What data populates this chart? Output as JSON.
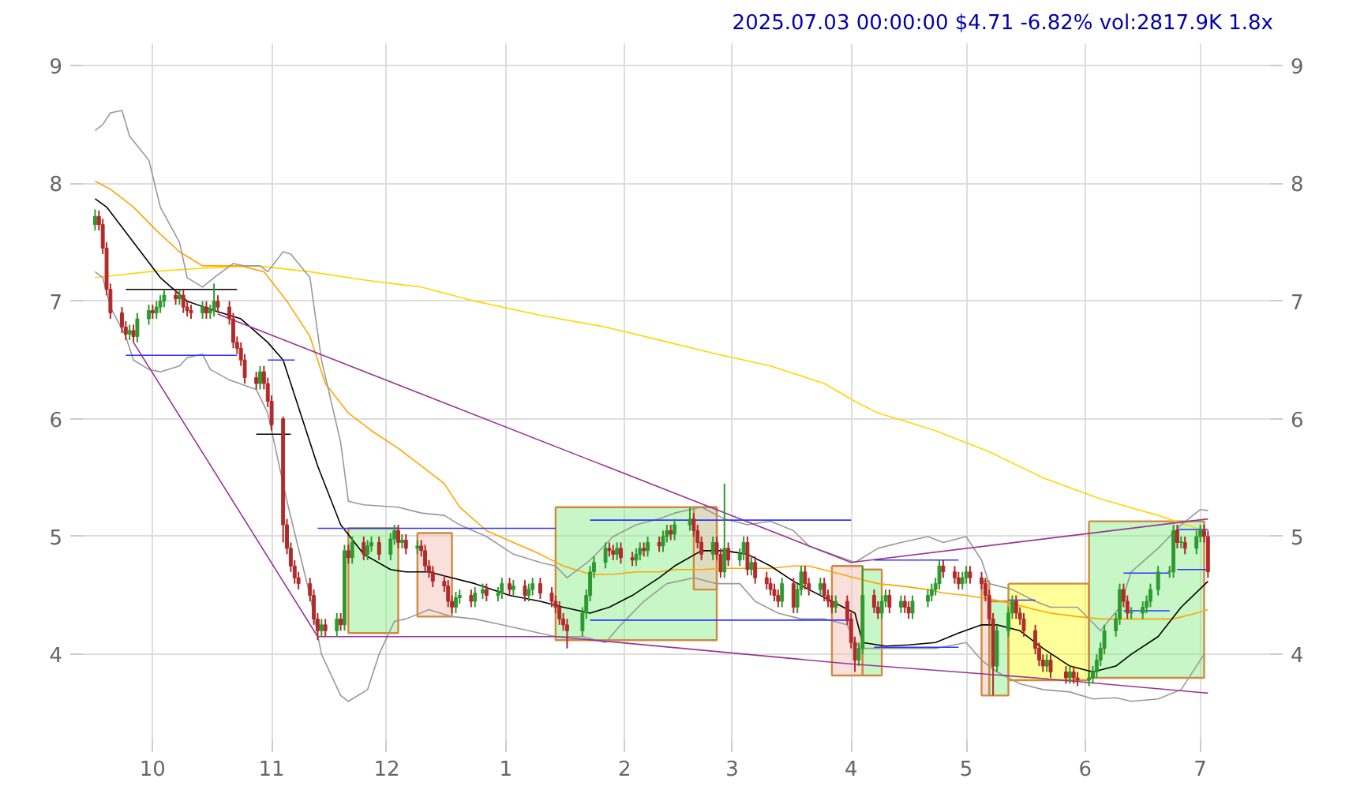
{
  "chart_data": {
    "type": "candlestick",
    "title": "2025.07.03 00:00:00 $4.71 -6.82% vol:2817.9K 1.8x",
    "x": [
      "2024-09-16",
      "2024-09-17",
      "2024-09-18",
      "2024-09-19",
      "2024-09-20",
      "2024-09-23",
      "2024-09-24",
      "2024-09-25",
      "2024-09-26",
      "2024-09-27",
      "2024-09-30",
      "2024-10-01",
      "2024-10-02",
      "2024-10-03",
      "2024-10-04",
      "2024-10-07",
      "2024-10-08",
      "2024-10-09",
      "2024-10-10",
      "2024-10-11",
      "2024-10-14",
      "2024-10-15",
      "2024-10-16",
      "2024-10-17",
      "2024-10-18",
      "2024-10-21",
      "2024-10-22",
      "2024-10-23",
      "2024-10-24",
      "2024-10-25",
      "2024-10-28",
      "2024-10-29",
      "2024-10-30",
      "2024-10-31",
      "2024-11-01",
      "2024-11-04",
      "2024-11-05",
      "2024-11-06",
      "2024-11-07",
      "2024-11-08",
      "2024-11-11",
      "2024-11-12",
      "2024-11-13",
      "2024-11-14",
      "2024-11-15",
      "2024-11-18",
      "2024-11-19",
      "2024-11-20",
      "2024-11-21",
      "2024-11-22",
      "2024-11-25",
      "2024-11-26",
      "2024-11-27",
      "2024-11-29",
      "2024-12-02",
      "2024-12-03",
      "2024-12-04",
      "2024-12-05",
      "2024-12-06",
      "2024-12-09",
      "2024-12-10",
      "2024-12-11",
      "2024-12-12",
      "2024-12-13",
      "2024-12-16",
      "2024-12-17",
      "2024-12-18",
      "2024-12-19",
      "2024-12-20",
      "2024-12-23",
      "2024-12-24",
      "2024-12-26",
      "2024-12-27",
      "2024-12-30",
      "2024-12-31",
      "2025-01-02",
      "2025-01-03",
      "2025-01-06",
      "2025-01-07",
      "2025-01-08",
      "2025-01-10",
      "2025-01-13",
      "2025-01-14",
      "2025-01-15",
      "2025-01-16",
      "2025-01-17",
      "2025-01-21",
      "2025-01-22",
      "2025-01-23",
      "2025-01-24",
      "2025-01-27",
      "2025-01-28",
      "2025-01-29",
      "2025-01-30",
      "2025-01-31",
      "2025-02-03",
      "2025-02-04",
      "2025-02-05",
      "2025-02-06",
      "2025-02-07",
      "2025-02-10",
      "2025-02-11",
      "2025-02-12",
      "2025-02-13",
      "2025-02-14",
      "2025-02-18",
      "2025-02-19",
      "2025-02-20",
      "2025-02-21",
      "2025-02-24",
      "2025-02-25",
      "2025-02-26",
      "2025-02-27",
      "2025-02-28",
      "2025-03-03",
      "2025-03-04",
      "2025-03-05",
      "2025-03-06",
      "2025-03-07",
      "2025-03-10",
      "2025-03-11",
      "2025-03-12",
      "2025-03-13",
      "2025-03-14",
      "2025-03-17",
      "2025-03-18",
      "2025-03-19",
      "2025-03-20",
      "2025-03-21",
      "2025-03-24",
      "2025-03-25",
      "2025-03-26",
      "2025-03-27",
      "2025-03-28",
      "2025-03-31",
      "2025-04-01",
      "2025-04-02",
      "2025-04-03",
      "2025-04-04",
      "2025-04-07",
      "2025-04-08",
      "2025-04-09",
      "2025-04-10",
      "2025-04-11",
      "2025-04-14",
      "2025-04-15",
      "2025-04-16",
      "2025-04-17",
      "2025-04-21",
      "2025-04-22",
      "2025-04-23",
      "2025-04-24",
      "2025-04-25",
      "2025-04-28",
      "2025-04-29",
      "2025-04-30",
      "2025-05-01",
      "2025-05-02",
      "2025-05-05",
      "2025-05-06",
      "2025-05-07",
      "2025-05-08",
      "2025-05-09",
      "2025-05-12",
      "2025-05-13",
      "2025-05-14",
      "2025-05-15",
      "2025-05-16",
      "2025-05-19",
      "2025-05-20",
      "2025-05-21",
      "2025-05-22",
      "2025-05-23",
      "2025-05-27",
      "2025-05-28",
      "2025-05-29",
      "2025-05-30",
      "2025-06-02",
      "2025-06-03",
      "2025-06-04",
      "2025-06-05",
      "2025-06-06",
      "2025-06-09",
      "2025-06-10",
      "2025-06-11",
      "2025-06-12",
      "2025-06-13",
      "2025-06-16",
      "2025-06-17",
      "2025-06-18",
      "2025-06-20",
      "2025-06-23",
      "2025-06-24",
      "2025-06-25",
      "2025-06-26",
      "2025-06-27",
      "2025-06-30",
      "2025-07-01",
      "2025-07-02",
      "2025-07-03"
    ],
    "ohlc": [
      [
        7.65,
        7.78,
        7.6,
        7.72
      ],
      [
        7.72,
        7.77,
        7.6,
        7.65
      ],
      [
        7.65,
        7.7,
        7.4,
        7.45
      ],
      [
        7.45,
        7.5,
        7.05,
        7.1
      ],
      [
        7.1,
        7.15,
        6.85,
        6.9
      ],
      [
        6.9,
        6.95,
        6.73,
        6.78
      ],
      [
        6.78,
        6.83,
        6.67,
        6.72
      ],
      [
        6.72,
        6.8,
        6.67,
        6.75
      ],
      [
        6.75,
        6.8,
        6.65,
        6.7
      ],
      [
        6.7,
        6.9,
        6.65,
        6.85
      ],
      [
        6.85,
        6.97,
        6.8,
        6.92
      ],
      [
        6.92,
        6.97,
        6.85,
        6.9
      ],
      [
        6.9,
        7.0,
        6.85,
        6.95
      ],
      [
        6.95,
        7.05,
        6.9,
        7.0
      ],
      [
        7.0,
        7.1,
        6.95,
        7.05
      ],
      [
        7.05,
        7.1,
        6.97,
        7.02
      ],
      [
        7.02,
        7.1,
        6.97,
        7.05
      ],
      [
        7.05,
        7.1,
        6.9,
        6.95
      ],
      [
        6.95,
        7.0,
        6.87,
        6.92
      ],
      [
        6.92,
        6.97,
        6.85,
        6.9
      ],
      [
        6.9,
        7.0,
        6.85,
        6.95
      ],
      [
        6.95,
        7.0,
        6.85,
        6.9
      ],
      [
        6.9,
        6.97,
        6.85,
        6.92
      ],
      [
        6.92,
        7.15,
        6.87,
        7.0
      ],
      [
        7.0,
        7.05,
        6.9,
        6.95
      ],
      [
        6.95,
        7.0,
        6.8,
        6.85
      ],
      [
        6.85,
        6.9,
        6.6,
        6.65
      ],
      [
        6.65,
        6.7,
        6.55,
        6.6
      ],
      [
        6.6,
        6.65,
        6.45,
        6.5
      ],
      [
        6.5,
        6.55,
        6.3,
        6.35
      ],
      [
        6.35,
        6.4,
        6.25,
        6.3
      ],
      [
        6.3,
        6.45,
        6.25,
        6.4
      ],
      [
        6.4,
        6.45,
        6.25,
        6.3
      ],
      [
        6.3,
        6.35,
        6.1,
        6.15
      ],
      [
        6.15,
        6.2,
        5.9,
        5.95
      ],
      [
        6.0,
        6.02,
        4.95,
        5.1
      ],
      [
        5.1,
        5.15,
        4.85,
        4.9
      ],
      [
        4.9,
        4.95,
        4.7,
        4.75
      ],
      [
        4.75,
        4.8,
        4.6,
        4.65
      ],
      [
        4.65,
        4.7,
        4.55,
        4.6
      ],
      [
        4.6,
        4.65,
        4.45,
        4.5
      ],
      [
        4.5,
        4.55,
        4.25,
        4.3
      ],
      [
        4.3,
        4.35,
        4.12,
        4.2
      ],
      [
        4.2,
        4.3,
        4.15,
        4.25
      ],
      [
        4.25,
        4.3,
        4.15,
        4.2
      ],
      [
        4.2,
        4.35,
        4.15,
        4.3
      ],
      [
        4.3,
        4.35,
        4.2,
        4.25
      ],
      [
        4.25,
        4.93,
        4.2,
        4.88
      ],
      [
        4.88,
        4.93,
        4.77,
        4.82
      ],
      [
        4.82,
        5.0,
        4.77,
        4.95
      ],
      [
        4.95,
        5.0,
        4.8,
        4.85
      ],
      [
        4.85,
        4.97,
        4.8,
        4.92
      ],
      [
        4.92,
        5.0,
        4.87,
        4.95
      ],
      [
        4.95,
        5.0,
        4.8,
        4.85
      ],
      [
        4.85,
        5.03,
        4.8,
        4.98
      ],
      [
        4.98,
        5.1,
        4.93,
        5.05
      ],
      [
        5.05,
        5.1,
        4.9,
        4.95
      ],
      [
        4.95,
        5.02,
        4.9,
        4.97
      ],
      [
        4.97,
        5.02,
        4.85,
        4.9
      ],
      [
        4.9,
        4.97,
        4.85,
        4.92
      ],
      [
        4.92,
        4.97,
        4.83,
        4.88
      ],
      [
        4.88,
        4.93,
        4.7,
        4.75
      ],
      [
        4.75,
        4.8,
        4.65,
        4.7
      ],
      [
        4.7,
        4.75,
        4.57,
        4.62
      ],
      [
        4.62,
        4.67,
        4.53,
        4.58
      ],
      [
        4.58,
        4.63,
        4.4,
        4.45
      ],
      [
        4.45,
        4.5,
        4.35,
        4.4
      ],
      [
        4.4,
        4.53,
        4.35,
        4.48
      ],
      [
        4.48,
        4.55,
        4.43,
        4.5
      ],
      [
        4.5,
        4.55,
        4.4,
        4.45
      ],
      [
        4.45,
        4.57,
        4.4,
        4.52
      ],
      [
        4.52,
        4.6,
        4.47,
        4.55
      ],
      [
        4.55,
        4.6,
        4.45,
        4.5
      ],
      [
        4.5,
        4.57,
        4.45,
        4.52
      ],
      [
        4.52,
        4.65,
        4.47,
        4.6
      ],
      [
        4.6,
        4.65,
        4.5,
        4.55
      ],
      [
        4.55,
        4.63,
        4.5,
        4.58
      ],
      [
        4.58,
        4.63,
        4.45,
        4.5
      ],
      [
        4.5,
        4.6,
        4.45,
        4.55
      ],
      [
        4.55,
        4.65,
        4.5,
        4.6
      ],
      [
        4.6,
        4.65,
        4.47,
        4.52
      ],
      [
        4.52,
        4.57,
        4.4,
        4.45
      ],
      [
        4.45,
        4.5,
        4.35,
        4.4
      ],
      [
        4.4,
        4.45,
        4.25,
        4.3
      ],
      [
        4.3,
        4.35,
        4.2,
        4.25
      ],
      [
        4.25,
        4.3,
        4.05,
        4.2
      ],
      [
        4.2,
        4.4,
        4.15,
        4.35
      ],
      [
        4.35,
        4.55,
        4.3,
        4.5
      ],
      [
        4.5,
        4.75,
        4.45,
        4.7
      ],
      [
        4.7,
        4.83,
        4.65,
        4.78
      ],
      [
        4.78,
        4.95,
        4.73,
        4.9
      ],
      [
        4.9,
        4.95,
        4.83,
        4.88
      ],
      [
        4.88,
        4.93,
        4.8,
        4.85
      ],
      [
        4.85,
        4.95,
        4.8,
        4.9
      ],
      [
        4.9,
        4.95,
        4.77,
        4.82
      ],
      [
        4.82,
        4.87,
        4.75,
        4.8
      ],
      [
        4.8,
        4.9,
        4.75,
        4.85
      ],
      [
        4.85,
        4.95,
        4.8,
        4.9
      ],
      [
        4.9,
        4.95,
        4.83,
        4.88
      ],
      [
        4.88,
        5.0,
        4.83,
        4.95
      ],
      [
        4.95,
        5.0,
        4.87,
        4.92
      ],
      [
        4.92,
        5.05,
        4.87,
        5.0
      ],
      [
        5.0,
        5.1,
        4.95,
        5.05
      ],
      [
        5.05,
        5.1,
        4.97,
        5.02
      ],
      [
        5.02,
        5.15,
        4.97,
        5.1
      ],
      [
        5.1,
        5.25,
        5.05,
        5.15
      ],
      [
        5.15,
        5.2,
        5.0,
        5.05
      ],
      [
        5.05,
        5.1,
        4.9,
        4.95
      ],
      [
        4.95,
        5.0,
        4.8,
        4.85
      ],
      [
        4.85,
        5.0,
        4.8,
        4.95
      ],
      [
        4.95,
        5.0,
        4.8,
        4.85
      ],
      [
        4.85,
        4.9,
        4.65,
        4.7
      ],
      [
        4.7,
        5.45,
        4.65,
        4.9
      ],
      [
        4.9,
        4.95,
        4.75,
        4.8
      ],
      [
        4.8,
        4.9,
        4.75,
        4.85
      ],
      [
        4.85,
        5.0,
        4.8,
        4.95
      ],
      [
        4.95,
        5.0,
        4.67,
        4.72
      ],
      [
        4.72,
        4.83,
        4.67,
        4.78
      ],
      [
        4.78,
        4.83,
        4.6,
        4.65
      ],
      [
        4.65,
        4.7,
        4.55,
        4.6
      ],
      [
        4.6,
        4.65,
        4.5,
        4.55
      ],
      [
        4.55,
        4.6,
        4.45,
        4.5
      ],
      [
        4.5,
        4.55,
        4.4,
        4.45
      ],
      [
        4.45,
        4.65,
        4.4,
        4.6
      ],
      [
        4.6,
        4.65,
        4.35,
        4.4
      ],
      [
        4.4,
        4.6,
        4.35,
        4.55
      ],
      [
        4.55,
        4.75,
        4.5,
        4.7
      ],
      [
        4.7,
        4.75,
        4.55,
        4.6
      ],
      [
        4.6,
        4.65,
        4.5,
        4.55
      ],
      [
        4.55,
        4.65,
        4.5,
        4.6
      ],
      [
        4.6,
        4.65,
        4.45,
        4.5
      ],
      [
        4.5,
        4.55,
        4.4,
        4.45
      ],
      [
        4.45,
        4.5,
        4.35,
        4.4
      ],
      [
        4.4,
        4.5,
        4.35,
        4.45
      ],
      [
        4.45,
        4.5,
        4.25,
        4.3
      ],
      [
        4.3,
        4.35,
        4.05,
        4.1
      ],
      [
        4.1,
        4.15,
        3.85,
        3.95
      ],
      [
        3.95,
        4.1,
        3.9,
        4.05
      ],
      [
        4.05,
        4.75,
        4.0,
        4.5
      ],
      [
        4.5,
        4.55,
        4.35,
        4.4
      ],
      [
        4.4,
        4.45,
        4.3,
        4.35
      ],
      [
        4.35,
        4.5,
        4.3,
        4.45
      ],
      [
        4.45,
        4.55,
        4.4,
        4.5
      ],
      [
        4.5,
        4.55,
        4.35,
        4.4
      ],
      [
        4.4,
        4.5,
        4.35,
        4.45
      ],
      [
        4.45,
        4.5,
        4.35,
        4.4
      ],
      [
        4.4,
        4.45,
        4.3,
        4.35
      ],
      [
        4.35,
        4.5,
        4.3,
        4.45
      ],
      [
        4.45,
        4.55,
        4.4,
        4.5
      ],
      [
        4.5,
        4.6,
        4.45,
        4.55
      ],
      [
        4.55,
        4.65,
        4.5,
        4.6
      ],
      [
        4.6,
        4.8,
        4.55,
        4.75
      ],
      [
        4.75,
        4.8,
        4.65,
        4.7
      ],
      [
        4.7,
        4.75,
        4.6,
        4.65
      ],
      [
        4.65,
        4.7,
        4.55,
        4.6
      ],
      [
        4.6,
        4.7,
        4.55,
        4.65
      ],
      [
        4.65,
        4.75,
        4.6,
        4.7
      ],
      [
        4.7,
        4.75,
        4.6,
        4.65
      ],
      [
        4.65,
        4.7,
        4.55,
        4.6
      ],
      [
        4.6,
        4.65,
        4.45,
        4.5
      ],
      [
        4.5,
        4.55,
        4.25,
        4.3
      ],
      [
        4.3,
        4.35,
        3.65,
        3.9
      ],
      [
        3.9,
        4.25,
        3.85,
        4.2
      ],
      [
        4.2,
        4.4,
        4.15,
        4.35
      ],
      [
        4.35,
        4.5,
        4.3,
        4.45
      ],
      [
        4.45,
        4.5,
        4.3,
        4.35
      ],
      [
        4.35,
        4.4,
        4.25,
        4.3
      ],
      [
        4.3,
        4.35,
        4.15,
        4.2
      ],
      [
        4.2,
        4.25,
        4.0,
        4.05
      ],
      [
        4.05,
        4.1,
        3.9,
        3.95
      ],
      [
        3.95,
        4.0,
        3.85,
        3.9
      ],
      [
        3.9,
        4.0,
        3.85,
        3.95
      ],
      [
        3.95,
        4.0,
        3.8,
        3.85
      ],
      [
        3.85,
        3.9,
        3.75,
        3.8
      ],
      [
        3.8,
        3.9,
        3.75,
        3.85
      ],
      [
        3.85,
        3.9,
        3.75,
        3.8
      ],
      [
        3.8,
        3.85,
        3.73,
        3.78
      ],
      [
        3.78,
        3.85,
        3.73,
        3.8
      ],
      [
        3.8,
        3.9,
        3.75,
        3.85
      ],
      [
        3.85,
        4.0,
        3.8,
        3.95
      ],
      [
        3.95,
        4.1,
        3.9,
        4.05
      ],
      [
        4.05,
        4.25,
        4.0,
        4.2
      ],
      [
        4.2,
        4.35,
        4.15,
        4.3
      ],
      [
        4.3,
        4.6,
        4.25,
        4.55
      ],
      [
        4.55,
        4.6,
        4.4,
        4.45
      ],
      [
        4.45,
        4.5,
        4.3,
        4.35
      ],
      [
        4.35,
        4.4,
        4.3,
        4.35
      ],
      [
        4.35,
        4.45,
        4.3,
        4.4
      ],
      [
        4.4,
        4.5,
        4.35,
        4.45
      ],
      [
        4.45,
        4.6,
        4.4,
        4.55
      ],
      [
        4.55,
        4.75,
        4.5,
        4.7
      ],
      [
        4.7,
        4.75,
        4.65,
        4.7
      ],
      [
        4.7,
        5.1,
        4.65,
        5.05
      ],
      [
        5.05,
        5.1,
        4.9,
        4.95
      ],
      [
        4.95,
        5.0,
        4.9,
        4.95
      ],
      [
        4.95,
        5.0,
        4.85,
        4.9
      ],
      [
        4.9,
        5.05,
        4.85,
        5.0
      ],
      [
        5.0,
        5.1,
        4.95,
        5.05
      ],
      [
        5.05,
        5.1,
        4.95,
        5.0
      ],
      [
        5.0,
        5.05,
        4.65,
        4.7
      ]
    ],
    "series": [
      {
        "type": "area",
        "color": "#90ee90",
        "x": [
          "2024-11-21",
          "2024-12-04"
        ],
        "values": [
          null,
          null
        ],
        "lower": [
          4.18,
          4.18
        ],
        "upper": [
          5.07,
          5.07
        ]
      },
      {
        "type": "area",
        "color": "#f4c2b8",
        "x": [
          "2024-12-09",
          "2024-12-18"
        ],
        "values": [
          null,
          null
        ],
        "lower": [
          4.32,
          4.32
        ],
        "upper": [
          5.03,
          5.03
        ]
      },
      {
        "type": "area",
        "color": "#90ee90",
        "x": [
          "2025-01-14",
          "2025-02-25"
        ],
        "values": [
          null,
          null
        ],
        "lower": [
          4.12,
          4.12
        ],
        "upper": [
          5.25,
          5.25
        ]
      },
      {
        "type": "area",
        "color": "#f4c2b8",
        "x": [
          "2025-02-19",
          "2025-02-25"
        ],
        "values": [
          null,
          null
        ],
        "lower": [
          4.55,
          4.55
        ],
        "upper": [
          5.25,
          5.25
        ]
      },
      {
        "type": "area",
        "color": "#f4c2b8",
        "x": [
          "2025-03-27",
          "2025-04-04"
        ],
        "values": [
          null,
          null
        ],
        "lower": [
          3.82,
          3.82
        ],
        "upper": [
          4.75,
          4.75
        ]
      },
      {
        "type": "area",
        "color": "#90ee90",
        "x": [
          "2025-04-04",
          "2025-04-09"
        ],
        "values": [
          null,
          null
        ],
        "lower": [
          3.82,
          3.82
        ],
        "upper": [
          4.72,
          4.72
        ]
      },
      {
        "type": "area",
        "color": "#f4c2b8",
        "x": [
          "2025-05-05",
          "2025-05-07"
        ],
        "values": [
          null,
          null
        ],
        "lower": [
          3.65,
          3.65
        ],
        "upper": [
          4.62,
          4.62
        ]
      },
      {
        "type": "area",
        "color": "#90ee90",
        "x": [
          "2025-05-07",
          "2025-05-12"
        ],
        "values": [
          null,
          null
        ],
        "lower": [
          3.65,
          3.65
        ],
        "upper": [
          4.45,
          4.45
        ]
      },
      {
        "type": "area",
        "color": "#ffff33",
        "x": [
          "2025-05-12",
          "2025-06-02"
        ],
        "values": [
          null,
          null
        ],
        "lower": [
          3.78,
          3.78
        ],
        "upper": [
          4.6,
          4.6
        ]
      },
      {
        "type": "area",
        "color": "#90ee90",
        "x": [
          "2025-06-02",
          "2025-07-02"
        ],
        "values": [
          null,
          null
        ],
        "lower": [
          3.8,
          3.8
        ],
        "upper": [
          5.13,
          5.13
        ]
      },
      {
        "type": "line",
        "color": "#ffd700",
        "x": [
          "2024-09-16",
          "2024-09-30",
          "2024-10-14",
          "2024-10-28",
          "2024-11-11",
          "2024-11-25",
          "2024-12-10",
          "2024-12-24",
          "2025-01-10",
          "2025-01-27",
          "2025-02-10",
          "2025-02-25",
          "2025-03-11",
          "2025-03-25",
          "2025-04-02",
          "2025-04-08",
          "2025-04-23",
          "2025-05-07",
          "2025-05-21",
          "2025-06-05",
          "2025-06-20",
          "2025-07-02"
        ],
        "values": [
          7.2,
          7.25,
          7.28,
          7.3,
          7.25,
          7.18,
          7.12,
          7.0,
          6.88,
          6.78,
          6.67,
          6.55,
          6.45,
          6.3,
          6.15,
          6.05,
          5.9,
          5.72,
          5.5,
          5.32,
          5.18,
          5.05
        ]
      },
      {
        "type": "line",
        "color": "#ffa500",
        "x": [
          "2024-09-16",
          "2024-09-20",
          "2024-09-26",
          "2024-10-02",
          "2024-10-08",
          "2024-10-14",
          "2024-10-18",
          "2024-10-24",
          "2024-10-30",
          "2024-11-05",
          "2024-11-11",
          "2024-11-15",
          "2024-11-21",
          "2024-11-27",
          "2024-12-04",
          "2024-12-10",
          "2024-12-16",
          "2024-12-20",
          "2024-12-27",
          "2025-01-03",
          "2025-01-10",
          "2025-01-16",
          "2025-01-23",
          "2025-01-29",
          "2025-02-04",
          "2025-02-10",
          "2025-02-14",
          "2025-02-21",
          "2025-02-27",
          "2025-03-05",
          "2025-03-11",
          "2025-03-17",
          "2025-03-21",
          "2025-03-27",
          "2025-04-02",
          "2025-04-08",
          "2025-04-14",
          "2025-04-21",
          "2025-04-25",
          "2025-05-01",
          "2025-05-07",
          "2025-05-13",
          "2025-05-19",
          "2025-05-23",
          "2025-05-30",
          "2025-06-05",
          "2025-06-11",
          "2025-06-17",
          "2025-06-24",
          "2025-06-30",
          "2025-07-03"
        ],
        "values": [
          8.02,
          7.95,
          7.8,
          7.6,
          7.42,
          7.3,
          7.3,
          7.3,
          7.25,
          7.0,
          6.7,
          6.3,
          6.05,
          5.9,
          5.75,
          5.6,
          5.45,
          5.25,
          5.05,
          4.95,
          4.85,
          4.75,
          4.68,
          4.68,
          4.7,
          4.7,
          4.72,
          4.72,
          4.73,
          4.73,
          4.73,
          4.75,
          4.75,
          4.7,
          4.65,
          4.6,
          4.58,
          4.55,
          4.52,
          4.5,
          4.47,
          4.43,
          4.38,
          4.35,
          4.32,
          4.3,
          4.3,
          4.3,
          4.3,
          4.35,
          4.38
        ]
      },
      {
        "type": "line",
        "color": "#999999",
        "x": [
          "2024-09-16",
          "2024-09-18",
          "2024-09-20",
          "2024-09-23",
          "2024-09-25",
          "2024-09-30",
          "2024-10-03",
          "2024-10-08",
          "2024-10-10",
          "2024-10-14",
          "2024-10-17",
          "2024-10-22",
          "2024-10-25",
          "2024-10-29",
          "2024-10-31",
          "2024-11-04",
          "2024-11-06",
          "2024-11-11",
          "2024-11-14",
          "2024-11-19",
          "2024-11-21",
          "2024-11-25",
          "2024-12-04",
          "2024-12-10",
          "2024-12-16",
          "2024-12-20",
          "2024-12-27",
          "2025-01-03",
          "2025-01-10",
          "2025-01-14",
          "2025-01-17",
          "2025-01-23",
          "2025-01-29",
          "2025-02-04",
          "2025-02-10",
          "2025-02-14",
          "2025-02-21",
          "2025-02-27",
          "2025-03-05",
          "2025-03-11",
          "2025-03-17",
          "2025-03-21",
          "2025-03-27",
          "2025-04-02",
          "2025-04-08",
          "2025-04-14",
          "2025-04-21",
          "2025-04-25",
          "2025-05-01",
          "2025-05-05",
          "2025-05-07",
          "2025-05-13",
          "2025-05-19",
          "2025-05-23",
          "2025-05-30",
          "2025-06-05",
          "2025-06-10",
          "2025-06-13",
          "2025-06-20",
          "2025-06-26",
          "2025-07-01",
          "2025-07-03"
        ],
        "values": [
          8.45,
          8.5,
          8.6,
          8.62,
          8.4,
          8.2,
          7.8,
          7.5,
          7.2,
          7.12,
          7.2,
          7.32,
          7.3,
          7.3,
          7.25,
          7.42,
          7.4,
          7.2,
          6.5,
          5.8,
          5.3,
          5.27,
          5.25,
          5.2,
          5.18,
          5.1,
          5.0,
          4.85,
          4.78,
          4.75,
          4.65,
          4.8,
          5.0,
          5.1,
          5.15,
          5.2,
          5.25,
          5.15,
          5.1,
          5.13,
          5.05,
          4.92,
          4.85,
          4.78,
          4.9,
          4.95,
          5.0,
          4.95,
          5.0,
          4.8,
          4.6,
          4.55,
          4.45,
          4.4,
          4.4,
          4.2,
          4.4,
          4.7,
          4.9,
          5.1,
          5.23,
          5.22
        ]
      },
      {
        "type": "line",
        "color": "#999999",
        "x": [
          "2024-09-16",
          "2024-09-18",
          "2024-09-20",
          "2024-09-24",
          "2024-09-26",
          "2024-09-30",
          "2024-10-03",
          "2024-10-08",
          "2024-10-10",
          "2024-10-14",
          "2024-10-16",
          "2024-10-21",
          "2024-10-28",
          "2024-10-31",
          "2024-11-05",
          "2024-11-11",
          "2024-11-14",
          "2024-11-19",
          "2024-11-21",
          "2024-11-26",
          "2024-11-29",
          "2024-12-03",
          "2024-12-06",
          "2024-12-12",
          "2024-12-18",
          "2024-12-24",
          "2024-12-31",
          "2025-01-07",
          "2025-01-14",
          "2025-01-21",
          "2025-01-27",
          "2025-01-31",
          "2025-02-06",
          "2025-02-12",
          "2025-02-19",
          "2025-02-25",
          "2025-03-03",
          "2025-03-07",
          "2025-03-13",
          "2025-03-19",
          "2025-03-25",
          "2025-03-31",
          "2025-04-02",
          "2025-04-04",
          "2025-04-10",
          "2025-04-23",
          "2025-05-01",
          "2025-05-05",
          "2025-05-09",
          "2025-05-15",
          "2025-05-21",
          "2025-05-28",
          "2025-06-03",
          "2025-06-09",
          "2025-06-13",
          "2025-06-20",
          "2025-06-26",
          "2025-07-02"
        ],
        "values": [
          7.25,
          7.2,
          6.95,
          6.7,
          6.5,
          6.42,
          6.4,
          6.45,
          6.52,
          6.55,
          6.42,
          6.33,
          6.25,
          6.05,
          5.3,
          4.5,
          4.0,
          3.65,
          3.6,
          3.7,
          4.0,
          4.28,
          4.3,
          4.38,
          4.32,
          4.3,
          4.25,
          4.2,
          4.15,
          4.15,
          4.1,
          4.25,
          4.45,
          4.6,
          4.65,
          4.6,
          4.6,
          4.45,
          4.35,
          4.3,
          4.3,
          4.25,
          4.1,
          4.05,
          4.05,
          4.05,
          4.1,
          3.95,
          3.85,
          3.75,
          3.7,
          3.68,
          3.62,
          3.63,
          3.6,
          3.62,
          3.7,
          4.0
        ]
      },
      {
        "type": "line",
        "color": "#000000",
        "x": [
          "2024-09-16",
          "2024-09-19",
          "2024-09-26",
          "2024-10-03",
          "2024-10-10",
          "2024-10-17",
          "2024-10-24",
          "2024-10-31",
          "2024-11-04",
          "2024-11-07",
          "2024-11-13",
          "2024-11-19",
          "2024-11-25",
          "2024-12-02",
          "2024-12-06",
          "2024-12-12",
          "2024-12-18",
          "2024-12-24",
          "2025-01-02",
          "2025-01-10",
          "2025-01-16",
          "2025-01-23",
          "2025-01-28",
          "2025-02-03",
          "2025-02-10",
          "2025-02-14",
          "2025-02-21",
          "2025-02-27",
          "2025-03-05",
          "2025-03-11",
          "2025-03-17",
          "2025-03-21",
          "2025-03-27",
          "2025-04-02",
          "2025-04-04",
          "2025-04-10",
          "2025-04-16",
          "2025-04-23",
          "2025-04-29",
          "2025-05-05",
          "2025-05-09",
          "2025-05-15",
          "2025-05-21",
          "2025-05-28",
          "2025-06-03",
          "2025-06-09",
          "2025-06-13",
          "2025-06-20",
          "2025-06-26",
          "2025-07-03"
        ],
        "values": [
          7.87,
          7.8,
          7.5,
          7.2,
          7.0,
          6.92,
          6.85,
          6.65,
          6.5,
          6.2,
          5.6,
          5.1,
          4.85,
          4.72,
          4.7,
          4.7,
          4.65,
          4.6,
          4.5,
          4.45,
          4.4,
          4.35,
          4.4,
          4.5,
          4.65,
          4.75,
          4.88,
          4.88,
          4.85,
          4.75,
          4.62,
          4.55,
          4.45,
          4.35,
          4.1,
          4.07,
          4.08,
          4.1,
          4.18,
          4.25,
          4.25,
          4.2,
          4.05,
          3.9,
          3.85,
          3.9,
          4.0,
          4.15,
          4.4,
          4.62
        ]
      },
      {
        "type": "line",
        "color": "#993399",
        "x": [
          "2024-09-26",
          "2024-11-13",
          "2025-01-14",
          "2025-03-31",
          "2025-05-19",
          "2025-07-03"
        ],
        "values": [
          6.65,
          4.15,
          4.15,
          3.92,
          3.8,
          3.67
        ]
      },
      {
        "type": "line",
        "color": "#993399",
        "x": [
          "2024-10-18",
          "2025-04-01",
          "2025-07-03"
        ],
        "values": [
          6.89,
          4.78,
          5.15
        ]
      },
      {
        "type": "line",
        "color": "#000000",
        "x": [
          "2024-09-24",
          "2024-10-23"
        ],
        "values": [
          7.1,
          7.1
        ]
      },
      {
        "type": "line",
        "color": "#3333ff",
        "x": [
          "2024-09-24",
          "2024-10-23"
        ],
        "values": [
          6.54,
          6.54
        ]
      },
      {
        "type": "line",
        "color": "#000000",
        "x": [
          "2024-10-28",
          "2024-11-06"
        ],
        "values": [
          5.87,
          5.87
        ]
      },
      {
        "type": "line",
        "color": "#3333ff",
        "x": [
          "2024-10-31",
          "2024-11-07"
        ],
        "values": [
          6.5,
          6.5
        ]
      },
      {
        "type": "line",
        "color": "#3333ff",
        "x": [
          "2024-11-13",
          "2025-01-14"
        ],
        "values": [
          5.07,
          5.07
        ]
      },
      {
        "type": "line",
        "color": "#3333ff",
        "x": [
          "2025-01-23",
          "2025-04-01"
        ],
        "values": [
          5.14,
          5.14
        ]
      },
      {
        "type": "line",
        "color": "#3333ff",
        "x": [
          "2025-01-23",
          "2025-04-01"
        ],
        "values": [
          4.29,
          4.29
        ]
      },
      {
        "type": "line",
        "color": "#3333ff",
        "x": [
          "2025-04-07",
          "2025-04-29"
        ],
        "values": [
          4.8,
          4.8
        ]
      },
      {
        "type": "line",
        "color": "#3333ff",
        "x": [
          "2025-04-07",
          "2025-04-29"
        ],
        "values": [
          4.06,
          4.06
        ]
      },
      {
        "type": "line",
        "color": "#3333ff",
        "x": [
          "2025-05-12",
          "2025-05-19"
        ],
        "values": [
          4.46,
          4.46
        ]
      },
      {
        "type": "line",
        "color": "#3333ff",
        "x": [
          "2025-06-11",
          "2025-06-23"
        ],
        "values": [
          4.69,
          4.69
        ]
      },
      {
        "type": "line",
        "color": "#3333ff",
        "x": [
          "2025-06-11",
          "2025-06-23"
        ],
        "values": [
          4.37,
          4.37
        ]
      },
      {
        "type": "line",
        "color": "#3333ff",
        "x": [
          "2025-06-25",
          "2025-07-03"
        ],
        "values": [
          5.06,
          5.06
        ]
      },
      {
        "type": "line",
        "color": "#3333ff",
        "x": [
          "2025-06-25",
          "2025-07-03"
        ],
        "values": [
          4.72,
          4.72
        ]
      }
    ],
    "xlim": [
      "2024-09-12",
      "2025-07-20"
    ],
    "xticks": [
      {
        "value": "2024-10-01",
        "label": "10"
      },
      {
        "value": "2024-11-01",
        "label": "11"
      },
      {
        "value": "2024-12-01",
        "label": "12"
      },
      {
        "value": "2025-01-01",
        "label": "1"
      },
      {
        "value": "2025-02-01",
        "label": "2"
      },
      {
        "value": "2025-03-01",
        "label": "3"
      },
      {
        "value": "2025-04-01",
        "label": "4"
      },
      {
        "value": "2025-05-01",
        "label": "5"
      },
      {
        "value": "2025-06-01",
        "label": "6"
      },
      {
        "value": "2025-07-01",
        "label": "7"
      }
    ],
    "ylim": [
      3.25,
      9.19
    ],
    "yticks": [
      4,
      5,
      6,
      7,
      8,
      9
    ],
    "y2lim": [
      3.25,
      9.19
    ],
    "y2ticks": [
      4,
      5,
      6,
      7,
      8,
      9
    ],
    "grid": true
  }
}
